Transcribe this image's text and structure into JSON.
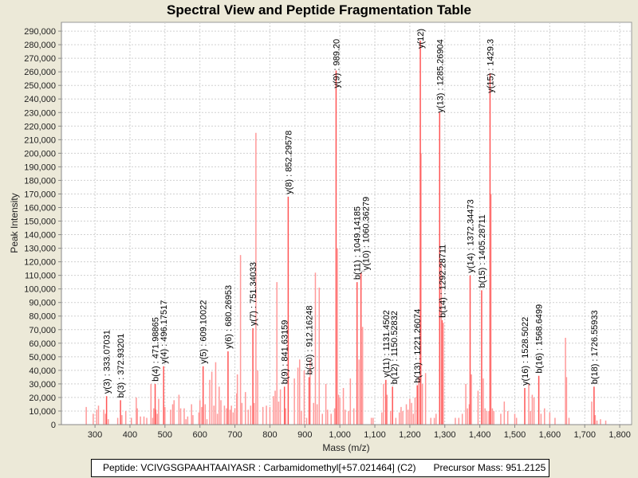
{
  "chart_data": {
    "type": "bar",
    "title": "Spectral View and Peptide Fragmentation Table",
    "xlabel": "Mass (m/z)",
    "ylabel": "Peak Intensity",
    "xlim": [
      204,
      1834
    ],
    "ylim": [
      0,
      296500
    ],
    "grid": true,
    "x_ticks": [
      300,
      400,
      500,
      600,
      700,
      800,
      900,
      1000,
      1100,
      1200,
      1300,
      1400,
      1500,
      1600,
      1700,
      1800
    ],
    "x_tick_labels": [
      "300",
      "400",
      "500",
      "600",
      "700",
      "800",
      "900",
      "1,000",
      "1,100",
      "1,200",
      "1,300",
      "1,400",
      "1,500",
      "1,600",
      "1,700",
      "1,800"
    ],
    "y_ticks": [
      0,
      10000,
      20000,
      30000,
      40000,
      50000,
      60000,
      70000,
      80000,
      90000,
      100000,
      110000,
      120000,
      130000,
      140000,
      150000,
      160000,
      170000,
      180000,
      190000,
      200000,
      210000,
      220000,
      230000,
      240000,
      250000,
      260000,
      270000,
      280000,
      290000
    ],
    "y_tick_labels": [
      "0",
      "10,000",
      "20,000",
      "30,000",
      "40,000",
      "50,000",
      "60,000",
      "70,000",
      "80,000",
      "90,000",
      "100,000",
      "110,000",
      "120,000",
      "130,000",
      "140,000",
      "150,000",
      "160,000",
      "170,000",
      "180,000",
      "190,000",
      "200,000",
      "210,000",
      "220,000",
      "230,000",
      "240,000",
      "250,000",
      "260,000",
      "270,000",
      "280,000",
      "290,000"
    ],
    "annotated_peaks": [
      {
        "label": "y(3) : 333.07031",
        "mz": 333.07,
        "intensity": 21000
      },
      {
        "label": "b(3) : 372.93201",
        "mz": 372.93,
        "intensity": 18000
      },
      {
        "label": "b(4) : 471.98865",
        "mz": 471.99,
        "intensity": 30000
      },
      {
        "label": "y(4) : 496.17517",
        "mz": 496.18,
        "intensity": 43000
      },
      {
        "label": "y(5) : 609.10022",
        "mz": 609.1,
        "intensity": 43000
      },
      {
        "label": "y(6) : 680.26953",
        "mz": 680.27,
        "intensity": 54000
      },
      {
        "label": "y(7) : 751.34033",
        "mz": 751.34,
        "intensity": 71000
      },
      {
        "label": "y(8) : 852.29578",
        "mz": 852.3,
        "intensity": 168000
      },
      {
        "label": "b(9) : 841.63159",
        "mz": 841.63,
        "intensity": 28000
      },
      {
        "label": "b(10) : 912.16248",
        "mz": 912.16,
        "intensity": 35000
      },
      {
        "label": "y(9) : 989.20",
        "mz": 989.2,
        "intensity": 261000
      },
      {
        "label": "b(11) : 1049.14185",
        "mz": 1049.14,
        "intensity": 105000
      },
      {
        "label": "y(10) : 1060.36279",
        "mz": 1060.36,
        "intensity": 112000
      },
      {
        "label": "y(11) : 1131.4502",
        "mz": 1131.45,
        "intensity": 33000
      },
      {
        "label": "b(12) : 1150.52832",
        "mz": 1150.53,
        "intensity": 28000
      },
      {
        "label": "b(13) : 1221.26074",
        "mz": 1221.26,
        "intensity": 29000
      },
      {
        "label": "y(12)",
        "mz": 1230.0,
        "intensity": 283000
      },
      {
        "label": "y(13) : 1285.26904",
        "mz": 1285.27,
        "intensity": 230000
      },
      {
        "label": "b(14) : 1292.28711",
        "mz": 1292.29,
        "intensity": 77000
      },
      {
        "label": "y(14) : 1372.34473",
        "mz": 1372.34,
        "intensity": 110000
      },
      {
        "label": "b(15) : 1405.28711",
        "mz": 1405.29,
        "intensity": 99000
      },
      {
        "label": "y(15) : 1429.3",
        "mz": 1429.3,
        "intensity": 259000
      },
      {
        "label": "y(16) : 1528.5022",
        "mz": 1528.5,
        "intensity": 27000
      },
      {
        "label": "b(16) : 1568.6499",
        "mz": 1568.65,
        "intensity": 36000
      },
      {
        "label": "b(18) : 1726.55933",
        "mz": 1726.56,
        "intensity": 28000
      }
    ],
    "other_peaks": [
      [
        275,
        13000
      ],
      [
        295,
        8000
      ],
      [
        305,
        11000
      ],
      [
        310,
        14000
      ],
      [
        325,
        11000
      ],
      [
        330,
        8000
      ],
      [
        338,
        4000
      ],
      [
        365,
        5000
      ],
      [
        377,
        7000
      ],
      [
        388,
        10000
      ],
      [
        404,
        5000
      ],
      [
        418,
        20000
      ],
      [
        421,
        12000
      ],
      [
        430,
        6000
      ],
      [
        440,
        6000
      ],
      [
        448,
        5000
      ],
      [
        460,
        30000
      ],
      [
        465,
        5000
      ],
      [
        468,
        12000
      ],
      [
        474,
        11000
      ],
      [
        478,
        8000
      ],
      [
        482,
        19000
      ],
      [
        500,
        13000
      ],
      [
        516,
        11000
      ],
      [
        522,
        15000
      ],
      [
        526,
        18000
      ],
      [
        540,
        22000
      ],
      [
        545,
        12000
      ],
      [
        555,
        12000
      ],
      [
        560,
        4000
      ],
      [
        565,
        6000
      ],
      [
        576,
        15000
      ],
      [
        580,
        7000
      ],
      [
        597,
        9000
      ],
      [
        600,
        18000
      ],
      [
        605,
        13000
      ],
      [
        615,
        15000
      ],
      [
        620,
        4000
      ],
      [
        628,
        33000
      ],
      [
        634,
        39000
      ],
      [
        640,
        14000
      ],
      [
        645,
        46000
      ],
      [
        650,
        8000
      ],
      [
        655,
        28000
      ],
      [
        660,
        18000
      ],
      [
        670,
        14000
      ],
      [
        676,
        12000
      ],
      [
        686,
        11000
      ],
      [
        690,
        14000
      ],
      [
        695,
        9000
      ],
      [
        700,
        12000
      ],
      [
        705,
        23000
      ],
      [
        707,
        37000
      ],
      [
        716,
        125000
      ],
      [
        720,
        16000
      ],
      [
        730,
        24000
      ],
      [
        738,
        11000
      ],
      [
        745,
        14000
      ],
      [
        755,
        16000
      ],
      [
        760,
        215000
      ],
      [
        765,
        40000
      ],
      [
        780,
        13000
      ],
      [
        790,
        14000
      ],
      [
        800,
        13000
      ],
      [
        810,
        21000
      ],
      [
        815,
        25000
      ],
      [
        820,
        105000
      ],
      [
        825,
        17000
      ],
      [
        830,
        26000
      ],
      [
        845,
        12000
      ],
      [
        870,
        34000
      ],
      [
        880,
        42000
      ],
      [
        885,
        48000
      ],
      [
        890,
        10000
      ],
      [
        898,
        40000
      ],
      [
        905,
        5000
      ],
      [
        915,
        48000
      ],
      [
        925,
        16000
      ],
      [
        930,
        112000
      ],
      [
        935,
        15000
      ],
      [
        941,
        101000
      ],
      [
        950,
        8000
      ],
      [
        960,
        30000
      ],
      [
        965,
        11000
      ],
      [
        975,
        8000
      ],
      [
        985,
        12000
      ],
      [
        993,
        130000
      ],
      [
        996,
        22000
      ],
      [
        1000,
        20000
      ],
      [
        1010,
        27000
      ],
      [
        1015,
        11000
      ],
      [
        1025,
        10000
      ],
      [
        1030,
        34000
      ],
      [
        1040,
        12000
      ],
      [
        1055,
        48000
      ],
      [
        1065,
        72000
      ],
      [
        1090,
        5000
      ],
      [
        1095,
        5000
      ],
      [
        1120,
        9000
      ],
      [
        1125,
        30000
      ],
      [
        1135,
        22000
      ],
      [
        1145,
        10000
      ],
      [
        1160,
        5000
      ],
      [
        1170,
        9000
      ],
      [
        1175,
        13000
      ],
      [
        1180,
        10000
      ],
      [
        1190,
        15000
      ],
      [
        1195,
        11000
      ],
      [
        1200,
        19000
      ],
      [
        1205,
        16000
      ],
      [
        1210,
        8000
      ],
      [
        1215,
        20000
      ],
      [
        1225,
        35000
      ],
      [
        1232,
        200000
      ],
      [
        1236,
        30000
      ],
      [
        1245,
        38000
      ],
      [
        1260,
        5000
      ],
      [
        1270,
        5000
      ],
      [
        1275,
        8000
      ],
      [
        1290,
        120000
      ],
      [
        1296,
        75000
      ],
      [
        1330,
        5000
      ],
      [
        1340,
        5000
      ],
      [
        1350,
        8000
      ],
      [
        1360,
        30000
      ],
      [
        1365,
        12000
      ],
      [
        1370,
        15000
      ],
      [
        1376,
        37000
      ],
      [
        1395,
        25000
      ],
      [
        1410,
        34000
      ],
      [
        1415,
        12000
      ],
      [
        1420,
        10000
      ],
      [
        1426,
        10000
      ],
      [
        1432,
        170000
      ],
      [
        1436,
        12000
      ],
      [
        1440,
        10000
      ],
      [
        1460,
        8000
      ],
      [
        1470,
        17000
      ],
      [
        1480,
        10000
      ],
      [
        1500,
        8000
      ],
      [
        1505,
        5000
      ],
      [
        1540,
        30000
      ],
      [
        1545,
        10000
      ],
      [
        1550,
        22000
      ],
      [
        1555,
        20000
      ],
      [
        1575,
        8000
      ],
      [
        1585,
        12000
      ],
      [
        1600,
        9000
      ],
      [
        1615,
        5000
      ],
      [
        1645,
        64000
      ],
      [
        1648,
        35000
      ],
      [
        1655,
        5000
      ],
      [
        1720,
        17000
      ],
      [
        1730,
        7000
      ],
      [
        1735,
        3000
      ],
      [
        1745,
        4000
      ],
      [
        1760,
        3000
      ]
    ]
  },
  "footer": {
    "peptide": "Peptide: VCIVGSGPAAHTAAIYASR : Carbamidomethyl[+57.021464] (C2)",
    "precursor": "Precursor Mass: 951.2125"
  },
  "colors": {
    "peak": "#ff5555",
    "peak_light": "#ff9999",
    "background": "#ece9d8",
    "plot_bg": "#ffffff",
    "grid": "#d0d0d0"
  }
}
